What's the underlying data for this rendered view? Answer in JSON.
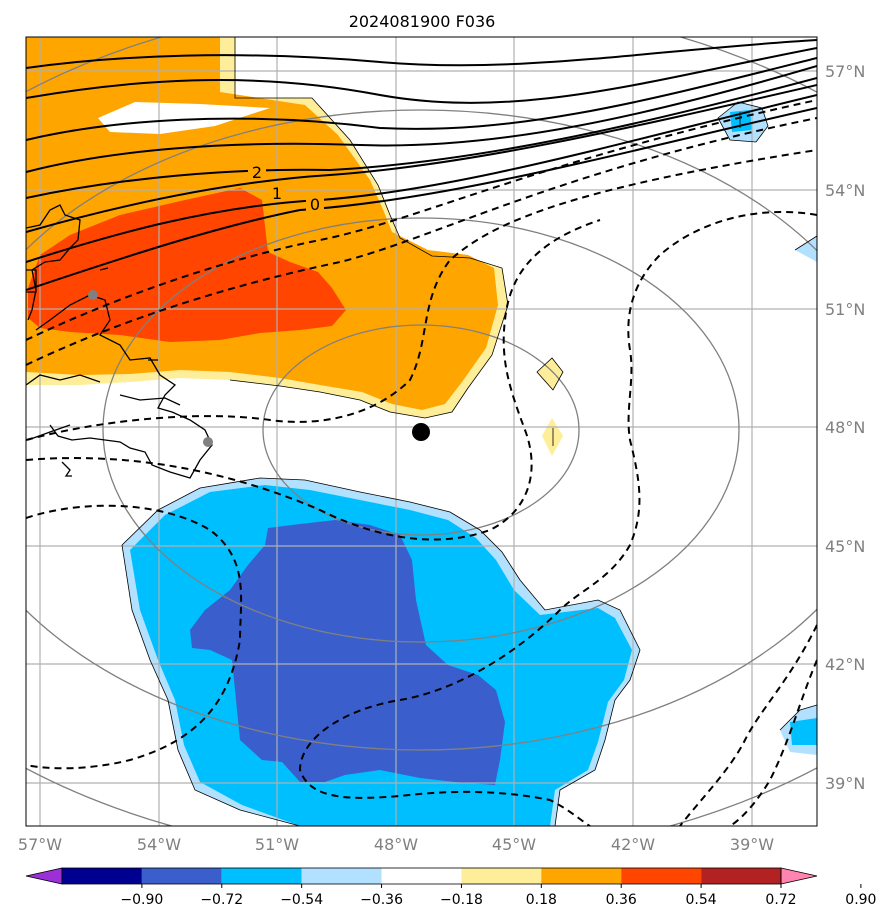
{
  "title": "2024081900 F036",
  "lat_labels": [
    "57°N",
    "54°N",
    "51°N",
    "48°N",
    "45°N",
    "42°N",
    "39°N"
  ],
  "lon_labels": [
    "57°W",
    "54°W",
    "51°W",
    "48°W",
    "45°W",
    "42°W",
    "39°W"
  ],
  "contour_labels": [
    "2",
    "1",
    "0"
  ],
  "colorbar": {
    "colors": [
      "#9b30d9",
      "#000090",
      "#3a5fcd",
      "#00bfff",
      "#b2e1ff",
      "#ffffff",
      "#ffee99",
      "#ffa500",
      "#ff4500",
      "#b22222",
      "#ff85b0"
    ],
    "labels": [
      "−0.90",
      "−0.72",
      "−0.54",
      "−0.36",
      "−0.18",
      "0.18",
      "0.36",
      "0.54",
      "0.72",
      "0.90"
    ]
  },
  "storm_center": {
    "lat": 47.9,
    "lon": -47.3
  }
}
